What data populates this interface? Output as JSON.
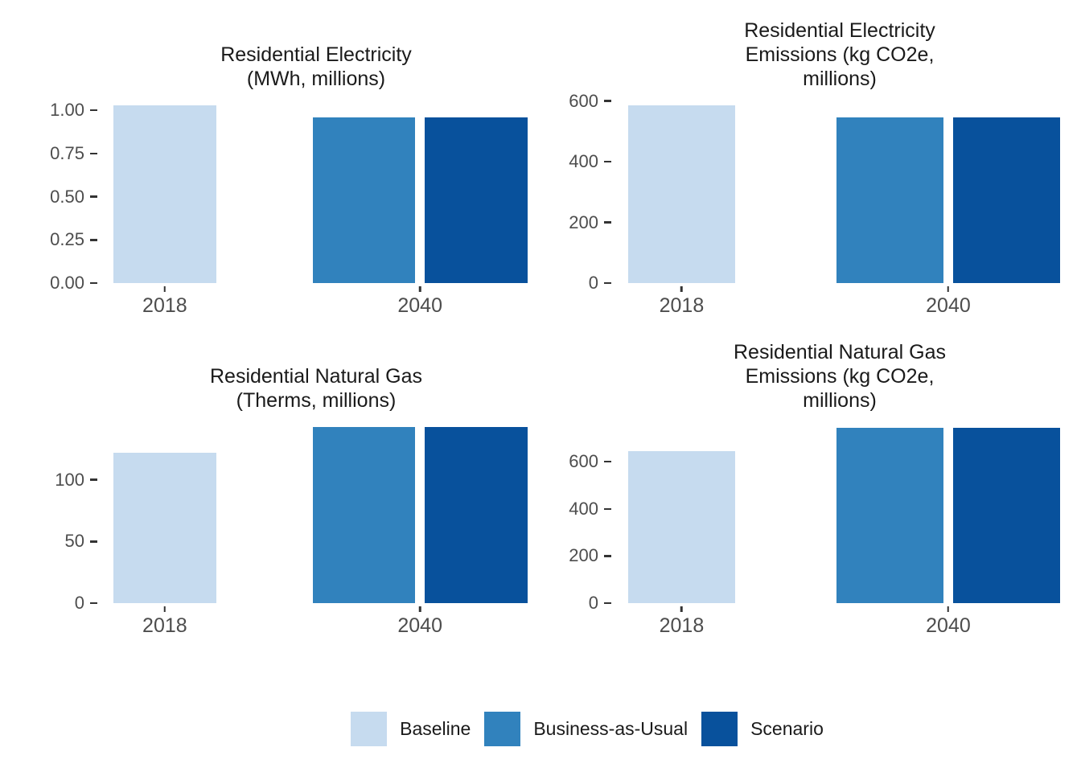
{
  "figure": {
    "background": "#FFFFFF"
  },
  "palette": {
    "axis_text": "#4D4D4D",
    "title_text": "#1A1A1A",
    "tick_mark": "#333333"
  },
  "series": [
    {
      "name": "Baseline",
      "color": "#C6DBEF"
    },
    {
      "name": "Business-as-Usual",
      "color": "#3182BD"
    },
    {
      "name": "Scenario",
      "color": "#08519C"
    }
  ],
  "legend": {
    "position": "bottom",
    "items": [
      {
        "label": "Baseline",
        "color": "#C6DBEF"
      },
      {
        "label": "Business-as-Usual",
        "color": "#3182BD"
      },
      {
        "label": "Scenario",
        "color": "#08519C"
      }
    ]
  },
  "chart_data": [
    {
      "type": "bar",
      "title": "Residential Electricity\n(MWh, millions)",
      "categories": [
        "2018",
        "2040"
      ],
      "ylim": [
        0,
        1.08
      ],
      "grid": false,
      "yticks": [
        {
          "value": 0,
          "label": "0.00"
        },
        {
          "value": 0.25,
          "label": "0.25"
        },
        {
          "value": 0.5,
          "label": "0.50"
        },
        {
          "value": 0.75,
          "label": "0.75"
        },
        {
          "value": 1.0,
          "label": "1.00"
        }
      ],
      "bars": [
        {
          "series": "Baseline",
          "category": "2018",
          "value": 1.03
        },
        {
          "series": "Business-as-Usual",
          "category": "2040",
          "value": 0.96
        },
        {
          "series": "Scenario",
          "category": "2040",
          "value": 0.96
        }
      ]
    },
    {
      "type": "bar",
      "title": "Residential Electricity\nEmissions (kg CO2e,\nmillions)",
      "categories": [
        "2018",
        "2040"
      ],
      "ylim": [
        0,
        615
      ],
      "grid": false,
      "yticks": [
        {
          "value": 0,
          "label": "0"
        },
        {
          "value": 200,
          "label": "200"
        },
        {
          "value": 400,
          "label": "400"
        },
        {
          "value": 600,
          "label": "600"
        }
      ],
      "bars": [
        {
          "series": "Baseline",
          "category": "2018",
          "value": 585
        },
        {
          "series": "Business-as-Usual",
          "category": "2040",
          "value": 545
        },
        {
          "series": "Scenario",
          "category": "2040",
          "value": 545
        }
      ]
    },
    {
      "type": "bar",
      "title": "Residential Natural Gas\n(Therms, millions)",
      "categories": [
        "2018",
        "2040"
      ],
      "ylim": [
        0,
        150
      ],
      "grid": false,
      "yticks": [
        {
          "value": 0,
          "label": "0"
        },
        {
          "value": 50,
          "label": "50"
        },
        {
          "value": 100,
          "label": "100"
        }
      ],
      "bars": [
        {
          "series": "Baseline",
          "category": "2018",
          "value": 122
        },
        {
          "series": "Business-as-Usual",
          "category": "2040",
          "value": 143
        },
        {
          "series": "Scenario",
          "category": "2040",
          "value": 143
        }
      ]
    },
    {
      "type": "bar",
      "title": "Residential Natural Gas\nEmissions (kg CO2e,\nmillions)",
      "categories": [
        "2018",
        "2040"
      ],
      "ylim": [
        0,
        785
      ],
      "grid": false,
      "yticks": [
        {
          "value": 0,
          "label": "0"
        },
        {
          "value": 200,
          "label": "200"
        },
        {
          "value": 400,
          "label": "400"
        },
        {
          "value": 600,
          "label": "600"
        }
      ],
      "bars": [
        {
          "series": "Baseline",
          "category": "2018",
          "value": 645
        },
        {
          "series": "Business-as-Usual",
          "category": "2040",
          "value": 745
        },
        {
          "series": "Scenario",
          "category": "2040",
          "value": 745
        }
      ]
    }
  ]
}
